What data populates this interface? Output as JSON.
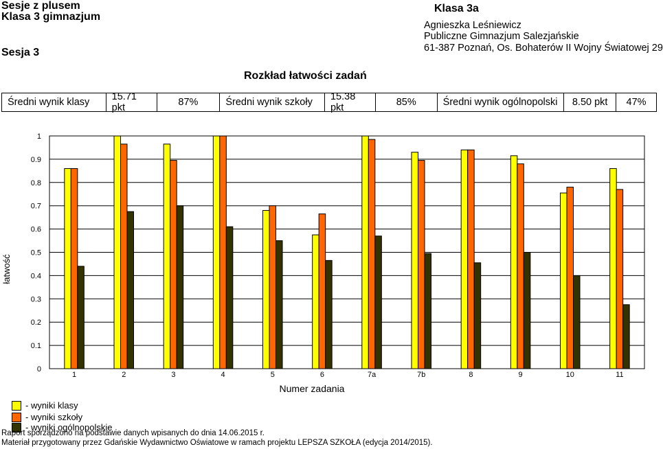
{
  "header": {
    "title_line1": "Sesje z plusem",
    "title_line2": "Klasa 3 gimnazjum",
    "session": "Sesja 3",
    "class_name": "Klasa 3a",
    "teacher": "Agnieszka Leśniewicz",
    "school": "Publiczne Gimnazjum Salezjańskie",
    "address": "61-387 Poznań, Os. Bohaterów II Wojny Światowej 29"
  },
  "section_title": "Rozkład łatwości zadań",
  "stats": {
    "class_label": "Średni wynik klasy",
    "class_pts": "15.71 pkt",
    "class_pct": "87%",
    "school_label": "Średni wynik szkoły",
    "school_pts": "15.38 pkt",
    "school_pct": "85%",
    "national_label": "Średni wynik ogólnopolski",
    "national_pts": "8.50 pkt",
    "national_pct": "47%"
  },
  "chart_data": {
    "type": "bar",
    "xlabel": "Numer zadania",
    "ylabel": "łatwość",
    "ylim": [
      0,
      1
    ],
    "yticks": [
      "0",
      "0.1",
      "0.2",
      "0.3",
      "0.4",
      "0.5",
      "0.6",
      "0.7",
      "0.8",
      "0.9",
      "1"
    ],
    "grid": "horizontal",
    "categories": [
      "1",
      "2",
      "3",
      "4",
      "5",
      "6",
      "7a",
      "7b",
      "8",
      "9",
      "10",
      "11"
    ],
    "series": [
      {
        "name": "- wyniki klasy",
        "color": "#ffff00",
        "values": [
          0.86,
          1.0,
          0.965,
          1.0,
          0.68,
          0.575,
          1.0,
          0.93,
          0.94,
          0.915,
          0.755,
          0.86
        ]
      },
      {
        "name": "- wyniki szkoły",
        "color": "#ff6600",
        "values": [
          0.86,
          0.965,
          0.895,
          1.0,
          0.7,
          0.665,
          0.985,
          0.895,
          0.94,
          0.88,
          0.78,
          0.77
        ]
      },
      {
        "name": "- wyniki ogólnopolskie",
        "color": "#333300",
        "values": [
          0.44,
          0.675,
          0.7,
          0.61,
          0.55,
          0.465,
          0.57,
          0.495,
          0.455,
          0.5,
          0.4,
          0.275
        ]
      }
    ],
    "legend_placement": "bottom-left"
  },
  "footer": {
    "line1": "Raport sporządzono na podstawie danych wpisanych do dnia 14.06.2015 r.",
    "line2": "Materiał przygotowany przez Gdańskie Wydawnictwo Oświatowe w ramach projektu LEPSZA SZKOŁA (edycja 2014/2015)."
  }
}
